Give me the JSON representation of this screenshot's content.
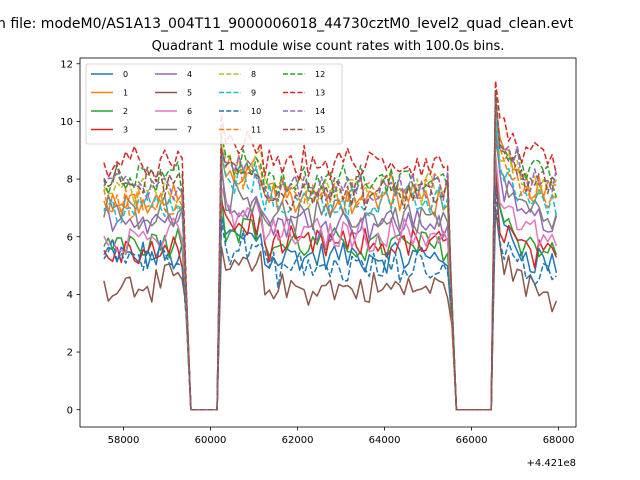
{
  "figure": {
    "suptitle": "n file: modeM0/AS1A13_004T11_9000006018_44730cztM0_level2_quad_clean.evt",
    "offset_label": "+4.421e8"
  },
  "chart_data": {
    "type": "line",
    "title": "Quadrant 1 module wise count rates with 100.0s bins.",
    "xlabel": "",
    "ylabel": "",
    "x_offset": 442100000,
    "xlim": [
      57000,
      68400
    ],
    "ylim": [
      -0.6,
      12.2
    ],
    "xticks": [
      58000,
      60000,
      62000,
      64000,
      66000,
      68000
    ],
    "yticks": [
      0,
      2,
      4,
      6,
      8,
      10,
      12
    ],
    "xtick_labels": [
      "58000",
      "60000",
      "62000",
      "64000",
      "66000",
      "68000"
    ],
    "ytick_labels": [
      "0",
      "2",
      "4",
      "6",
      "8",
      "10",
      "12"
    ],
    "grid": false,
    "legend": {
      "placement": "top-left",
      "columns": 4
    },
    "bin_seconds": 100,
    "segments": [
      {
        "start": 57550,
        "end": 59350
      },
      {
        "start": 60250,
        "end": 65450
      },
      {
        "start": 66550,
        "end": 67950
      }
    ],
    "gaps": [
      {
        "start": 59550,
        "end": 60150
      },
      {
        "start": 65650,
        "end": 66450
      }
    ],
    "series": [
      {
        "name": "0",
        "color": "#1f77b4",
        "dash": "solid",
        "level": 5.3,
        "early_level": 5.3,
        "late_level": 5.8
      },
      {
        "name": "1",
        "color": "#ff7f0e",
        "dash": "solid",
        "level": 7.3,
        "early_level": 7.2,
        "late_level": 8.2
      },
      {
        "name": "2",
        "color": "#2ca02c",
        "dash": "solid",
        "level": 5.7,
        "early_level": 5.9,
        "late_level": 6.2
      },
      {
        "name": "3",
        "color": "#d62728",
        "dash": "solid",
        "level": 5.7,
        "early_level": 5.4,
        "late_level": 5.9
      },
      {
        "name": "4",
        "color": "#9467bd",
        "dash": "solid",
        "level": 6.5,
        "early_level": 6.7,
        "late_level": 7.2
      },
      {
        "name": "5",
        "color": "#8c564b",
        "dash": "solid",
        "level": 4.2,
        "early_level": 4.4,
        "late_level": 4.7
      },
      {
        "name": "6",
        "color": "#e377c2",
        "dash": "solid",
        "level": 6.1,
        "early_level": 6.0,
        "late_level": 6.6
      },
      {
        "name": "7",
        "color": "#7f7f7f",
        "dash": "solid",
        "level": 6.7,
        "early_level": 6.9,
        "late_level": 7.3
      },
      {
        "name": "8",
        "color": "#bcbd22",
        "dash": "dashed",
        "level": 7.7,
        "early_level": 7.5,
        "late_level": 8.4
      },
      {
        "name": "9",
        "color": "#17becf",
        "dash": "dashed",
        "level": 7.2,
        "early_level": 7.0,
        "late_level": 7.8
      },
      {
        "name": "10",
        "color": "#1f77b4",
        "dash": "dashed",
        "level": 4.9,
        "early_level": 5.4,
        "late_level": 5.3
      },
      {
        "name": "11",
        "color": "#ff7f0e",
        "dash": "dashed",
        "level": 7.6,
        "early_level": 7.2,
        "late_level": 8.2
      },
      {
        "name": "12",
        "color": "#2ca02c",
        "dash": "dashed",
        "level": 7.9,
        "early_level": 8.0,
        "late_level": 8.8
      },
      {
        "name": "13",
        "color": "#d62728",
        "dash": "dashed",
        "level": 8.5,
        "early_level": 8.5,
        "late_level": 9.3
      },
      {
        "name": "14",
        "color": "#9467bd",
        "dash": "dashed",
        "level": 7.6,
        "early_level": 7.6,
        "late_level": 8.6
      },
      {
        "name": "15",
        "color": "#8c564b",
        "dash": "dashed",
        "level": 7.5,
        "early_level": 7.9,
        "late_level": 8.4
      }
    ]
  }
}
